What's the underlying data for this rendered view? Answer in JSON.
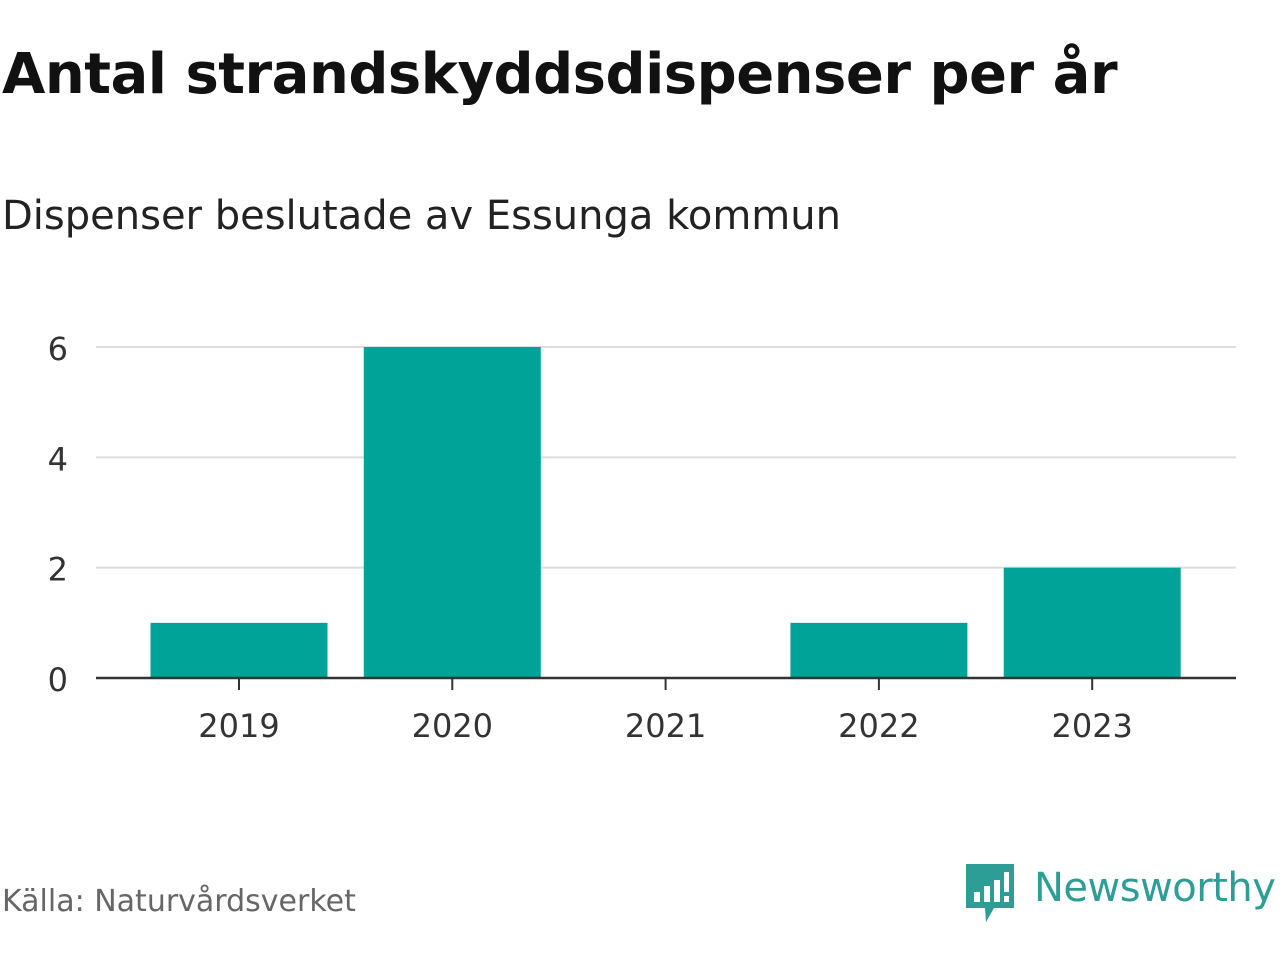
{
  "title": "Antal strandskyddsdispenser per år",
  "subtitle": "Dispenser beslutade av Essunga kommun",
  "source": "Källa: Naturvårdsverket",
  "brand": {
    "name": "Newsworthy",
    "icon": "newsworthy-logo-icon",
    "color": "#2c9e96"
  },
  "colors": {
    "bar": "#00a398",
    "grid": "#dddddd",
    "axis": "#333333",
    "tick_text": "#333333"
  },
  "chart_data": {
    "type": "bar",
    "title": "Antal strandskyddsdispenser per år",
    "subtitle": "Dispenser beslutade av Essunga kommun",
    "categories": [
      "2019",
      "2020",
      "2021",
      "2022",
      "2023"
    ],
    "values": [
      1,
      6,
      0,
      1,
      2
    ],
    "ylim": [
      0,
      6
    ],
    "yticks": [
      0,
      2,
      4,
      6
    ],
    "xlabel": "",
    "ylabel": "",
    "grid": true
  }
}
